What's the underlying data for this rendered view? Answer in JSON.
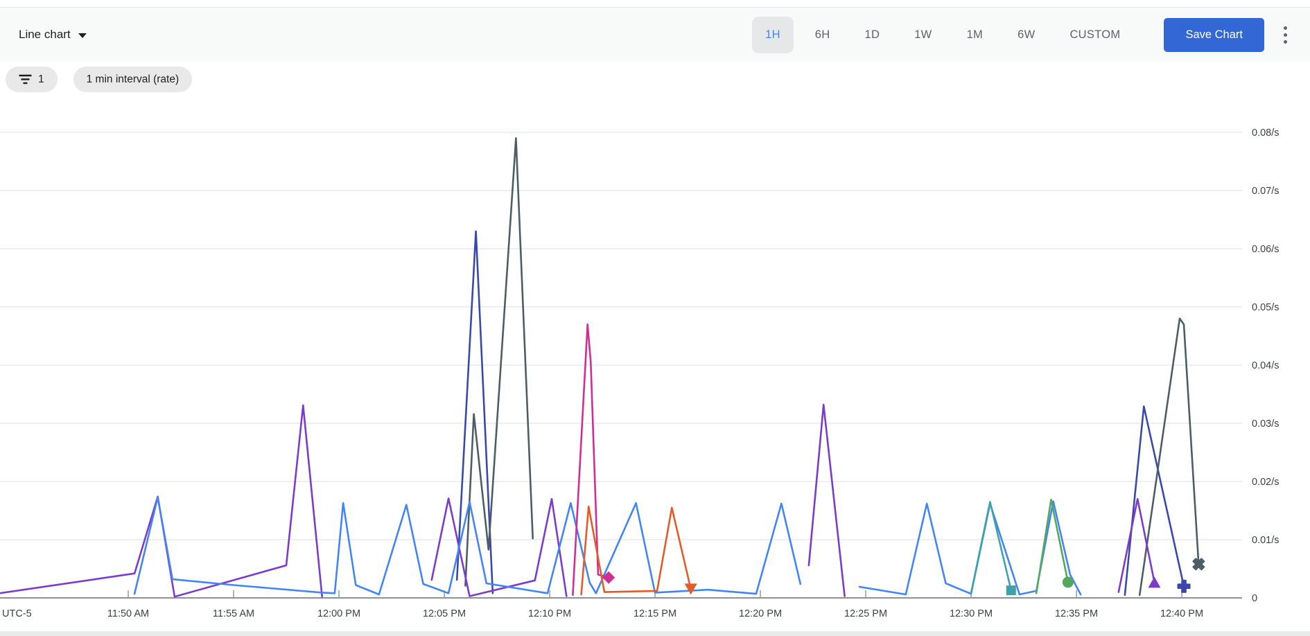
{
  "toolbar": {
    "chart_type_label": "Line chart",
    "time_ranges": [
      "1H",
      "6H",
      "1D",
      "1W",
      "1M",
      "6W",
      "CUSTOM"
    ],
    "selected_range": "1H",
    "save_button_label": "Save Chart",
    "kebab_icon": "more-vertical-dots",
    "accent_color": "#4285f4",
    "save_button_color": "#3367d6"
  },
  "filters": {
    "filter_count_chip": "1",
    "filter_icon": "filter-funnel-lines",
    "interval_chip": "1 min interval (rate)"
  },
  "chart_data": {
    "type": "line",
    "title": "",
    "timezone_label": "UTC-5",
    "t_unit": "decimal minutes after 11:00 AM",
    "v_unit": "events per second (rate)",
    "ylim": [
      0,
      0.085
    ],
    "grid": "horizontal-only",
    "legend": "none",
    "y_ticks": [
      {
        "v": 0,
        "label": "0"
      },
      {
        "v": 0.01,
        "label": "0.01/s"
      },
      {
        "v": 0.02,
        "label": "0.02/s"
      },
      {
        "v": 0.03,
        "label": "0.03/s"
      },
      {
        "v": 0.04,
        "label": "0.04/s"
      },
      {
        "v": 0.05,
        "label": "0.05/s"
      },
      {
        "v": 0.06,
        "label": "0.06/s"
      },
      {
        "v": 0.07,
        "label": "0.07/s"
      },
      {
        "v": 0.08,
        "label": "0.08/s"
      }
    ],
    "x_ticks": [
      {
        "t": 50,
        "label": "11:50 AM"
      },
      {
        "t": 55,
        "label": "11:55 AM"
      },
      {
        "t": 60,
        "label": "12:00 PM"
      },
      {
        "t": 65,
        "label": "12:05 PM"
      },
      {
        "t": 70,
        "label": "12:10 PM"
      },
      {
        "t": 75,
        "label": "12:15 PM"
      },
      {
        "t": 80,
        "label": "12:20 PM"
      },
      {
        "t": 85,
        "label": "12:25 PM"
      },
      {
        "t": 90,
        "label": "12:30 PM"
      },
      {
        "t": 95,
        "label": "12:35 PM"
      },
      {
        "t": 100,
        "label": "12:40 PM"
      }
    ],
    "series": [
      {
        "name": "navy-series",
        "color": "#3949ab",
        "marker": "plus",
        "segments": [
          [
            [
              65.6,
              0.0031
            ],
            [
              66.5,
              0.063
            ],
            [
              67.3,
              0.0008
            ]
          ],
          [
            [
              97.3,
              0.0005
            ],
            [
              98.2,
              0.0329
            ],
            [
              100.1,
              0.002
            ]
          ]
        ]
      },
      {
        "name": "slate-series",
        "color": "#4d5d66",
        "marker": "x",
        "segments": [
          [
            [
              66.0,
              0.0021
            ],
            [
              66.4,
              0.0316
            ],
            [
              67.1,
              0.0083
            ],
            [
              68.4,
              0.079
            ],
            [
              69.2,
              0.0102
            ]
          ],
          [
            [
              98.0,
              0.0005
            ],
            [
              99.9,
              0.048
            ],
            [
              100.1,
              0.047
            ],
            [
              100.8,
              0.0058
            ]
          ]
        ]
      },
      {
        "name": "purple-series",
        "color": "#7c3bcb",
        "marker": "triangle-up",
        "segments": [
          [
            [
              43.9,
              0.0008
            ],
            [
              50.3,
              0.0042
            ],
            [
              51.4,
              0.0174
            ],
            [
              52.2,
              0.0002
            ],
            [
              57.5,
              0.0056
            ],
            [
              58.3,
              0.0331
            ],
            [
              59.2,
              0.0002
            ]
          ],
          [
            [
              64.4,
              0.0031
            ],
            [
              65.2,
              0.0171
            ],
            [
              66.2,
              0.0003
            ],
            [
              69.3,
              0.003
            ],
            [
              70.1,
              0.017
            ],
            [
              70.8,
              0.0003
            ]
          ],
          [
            [
              82.3,
              0.0056
            ],
            [
              83.0,
              0.0332
            ],
            [
              84.0,
              0.0003
            ]
          ],
          [
            [
              97.0,
              0.001
            ],
            [
              97.9,
              0.017
            ],
            [
              98.7,
              0.0027
            ]
          ]
        ]
      },
      {
        "name": "blue-series",
        "color": "#4285f4",
        "marker": "none",
        "segments": [
          [
            [
              50.3,
              0.0007
            ],
            [
              51.4,
              0.0173
            ],
            [
              52.1,
              0.0032
            ],
            [
              55.0,
              0.0022
            ],
            [
              59.2,
              0.0009
            ],
            [
              59.8,
              0.0008
            ],
            [
              60.2,
              0.0163
            ],
            [
              60.8,
              0.0022
            ],
            [
              61.9,
              0.0006
            ],
            [
              63.2,
              0.016
            ],
            [
              64.0,
              0.0024
            ],
            [
              65.2,
              0.0008
            ],
            [
              66.2,
              0.0165
            ],
            [
              67.0,
              0.0025
            ],
            [
              69.9,
              0.0008
            ],
            [
              71.0,
              0.0163
            ],
            [
              71.9,
              0.0026
            ],
            [
              72.2,
              0.0008
            ],
            [
              74.1,
              0.0163
            ],
            [
              75.0,
              0.0009
            ],
            [
              77.5,
              0.0014
            ],
            [
              79.8,
              0.0007
            ],
            [
              81.0,
              0.0162
            ],
            [
              81.9,
              0.0024
            ]
          ],
          [
            [
              84.7,
              0.0019
            ],
            [
              86.9,
              0.0006
            ],
            [
              87.9,
              0.0162
            ],
            [
              88.8,
              0.0025
            ],
            [
              90.0,
              0.0007
            ],
            [
              90.9,
              0.0162
            ],
            [
              92.3,
              0.0006
            ],
            [
              93.1,
              0.0012
            ],
            [
              93.9,
              0.0166
            ],
            [
              94.7,
              0.004
            ],
            [
              95.2,
              0.0006
            ]
          ]
        ]
      },
      {
        "name": "magenta-series",
        "color": "#cf2e95",
        "marker": "diamond",
        "segments": [
          [
            [
              71.1,
              0.0005
            ],
            [
              71.8,
              0.047
            ],
            [
              71.95,
              0.0405
            ],
            [
              72.3,
              0.004
            ],
            [
              72.8,
              0.0035
            ]
          ]
        ]
      },
      {
        "name": "orange-series",
        "color": "#e35b28",
        "marker": "triangle-down",
        "segments": [
          [
            [
              71.5,
              0.0006
            ],
            [
              71.85,
              0.0157
            ],
            [
              72.6,
              0.001
            ],
            [
              75.1,
              0.0012
            ],
            [
              75.8,
              0.0155
            ],
            [
              76.7,
              0.0015
            ]
          ]
        ]
      },
      {
        "name": "teal-series",
        "color": "#3fa2aa",
        "marker": "square",
        "segments": [
          [
            [
              90.0,
              0.0008
            ],
            [
              90.9,
              0.0165
            ],
            [
              91.9,
              0.0013
            ]
          ]
        ]
      },
      {
        "name": "green-series",
        "color": "#53a85c",
        "marker": "circle",
        "segments": [
          [
            [
              93.1,
              0.0008
            ],
            [
              93.8,
              0.0169
            ],
            [
              94.6,
              0.0027
            ]
          ]
        ]
      }
    ]
  }
}
